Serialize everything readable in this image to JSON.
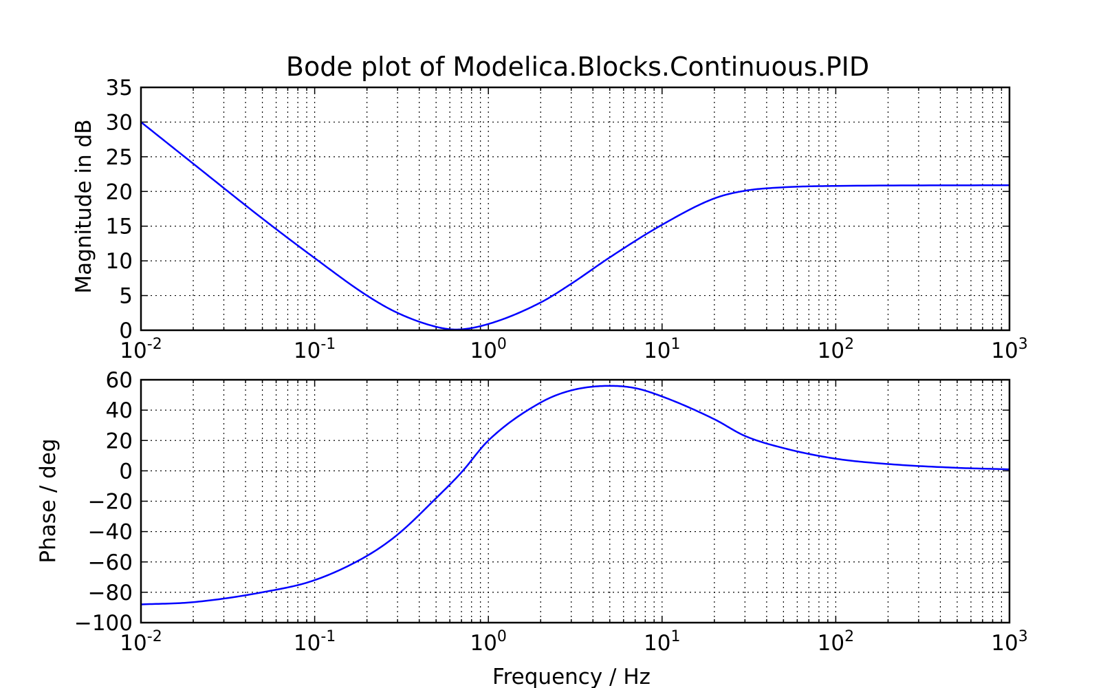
{
  "chart_data": [
    {
      "type": "line",
      "title": "Bode plot of Modelica.Blocks.Continuous.PID",
      "xlabel": "",
      "ylabel": "Magnitude in dB",
      "xscale": "log",
      "xlim": [
        0.01,
        1000
      ],
      "ylim": [
        0,
        35
      ],
      "yticks": [
        0,
        5,
        10,
        15,
        20,
        25,
        30,
        35
      ],
      "xtick_labels": [
        {
          "base": "10",
          "exp": "-2"
        },
        {
          "base": "10",
          "exp": "-1"
        },
        {
          "base": "10",
          "exp": "0"
        },
        {
          "base": "10",
          "exp": "1"
        },
        {
          "base": "10",
          "exp": "2"
        },
        {
          "base": "10",
          "exp": "3"
        }
      ],
      "grid": true,
      "line_color": "#0000ff",
      "series": [
        {
          "x": [
            0.01,
            0.02,
            0.05,
            0.1,
            0.2,
            0.3,
            0.5,
            0.65,
            1.0,
            2.0,
            3.0,
            5.0,
            10.0,
            20.0,
            30.0,
            50.0,
            100.0,
            1000.0
          ],
          "values": [
            30.0,
            24.0,
            16.1,
            10.4,
            5.0,
            2.5,
            0.5,
            0.1,
            0.9,
            4.0,
            6.7,
            10.5,
            15.2,
            19.0,
            20.1,
            20.6,
            20.8,
            20.9
          ]
        }
      ]
    },
    {
      "type": "line",
      "title": "",
      "xlabel": "Frequency / Hz",
      "ylabel": "Phase / deg",
      "xscale": "log",
      "xlim": [
        0.01,
        1000
      ],
      "ylim": [
        -100,
        60
      ],
      "yticks": [
        -100,
        -80,
        -60,
        -40,
        -20,
        0,
        20,
        40,
        60
      ],
      "ytick_labels": [
        "−100",
        "−80",
        "−60",
        "−40",
        "−20",
        "0",
        "20",
        "40",
        "60"
      ],
      "xtick_labels": [
        {
          "base": "10",
          "exp": "-2"
        },
        {
          "base": "10",
          "exp": "-1"
        },
        {
          "base": "10",
          "exp": "0"
        },
        {
          "base": "10",
          "exp": "1"
        },
        {
          "base": "10",
          "exp": "2"
        },
        {
          "base": "10",
          "exp": "3"
        }
      ],
      "grid": true,
      "line_color": "#0000ff",
      "series": [
        {
          "x": [
            0.01,
            0.02,
            0.05,
            0.1,
            0.2,
            0.3,
            0.5,
            0.7,
            1.0,
            2.0,
            3.0,
            5.0,
            7.0,
            10.0,
            20.0,
            30.0,
            50.0,
            100.0,
            200.0,
            500.0,
            1000.0
          ],
          "values": [
            -88.0,
            -86.5,
            -80.0,
            -72.0,
            -56.0,
            -42.0,
            -18.0,
            -1.0,
            20.0,
            45.0,
            53.0,
            56.0,
            54.5,
            49.0,
            34.0,
            23.0,
            15.0,
            8.0,
            4.5,
            2.0,
            1.0
          ]
        }
      ]
    }
  ]
}
